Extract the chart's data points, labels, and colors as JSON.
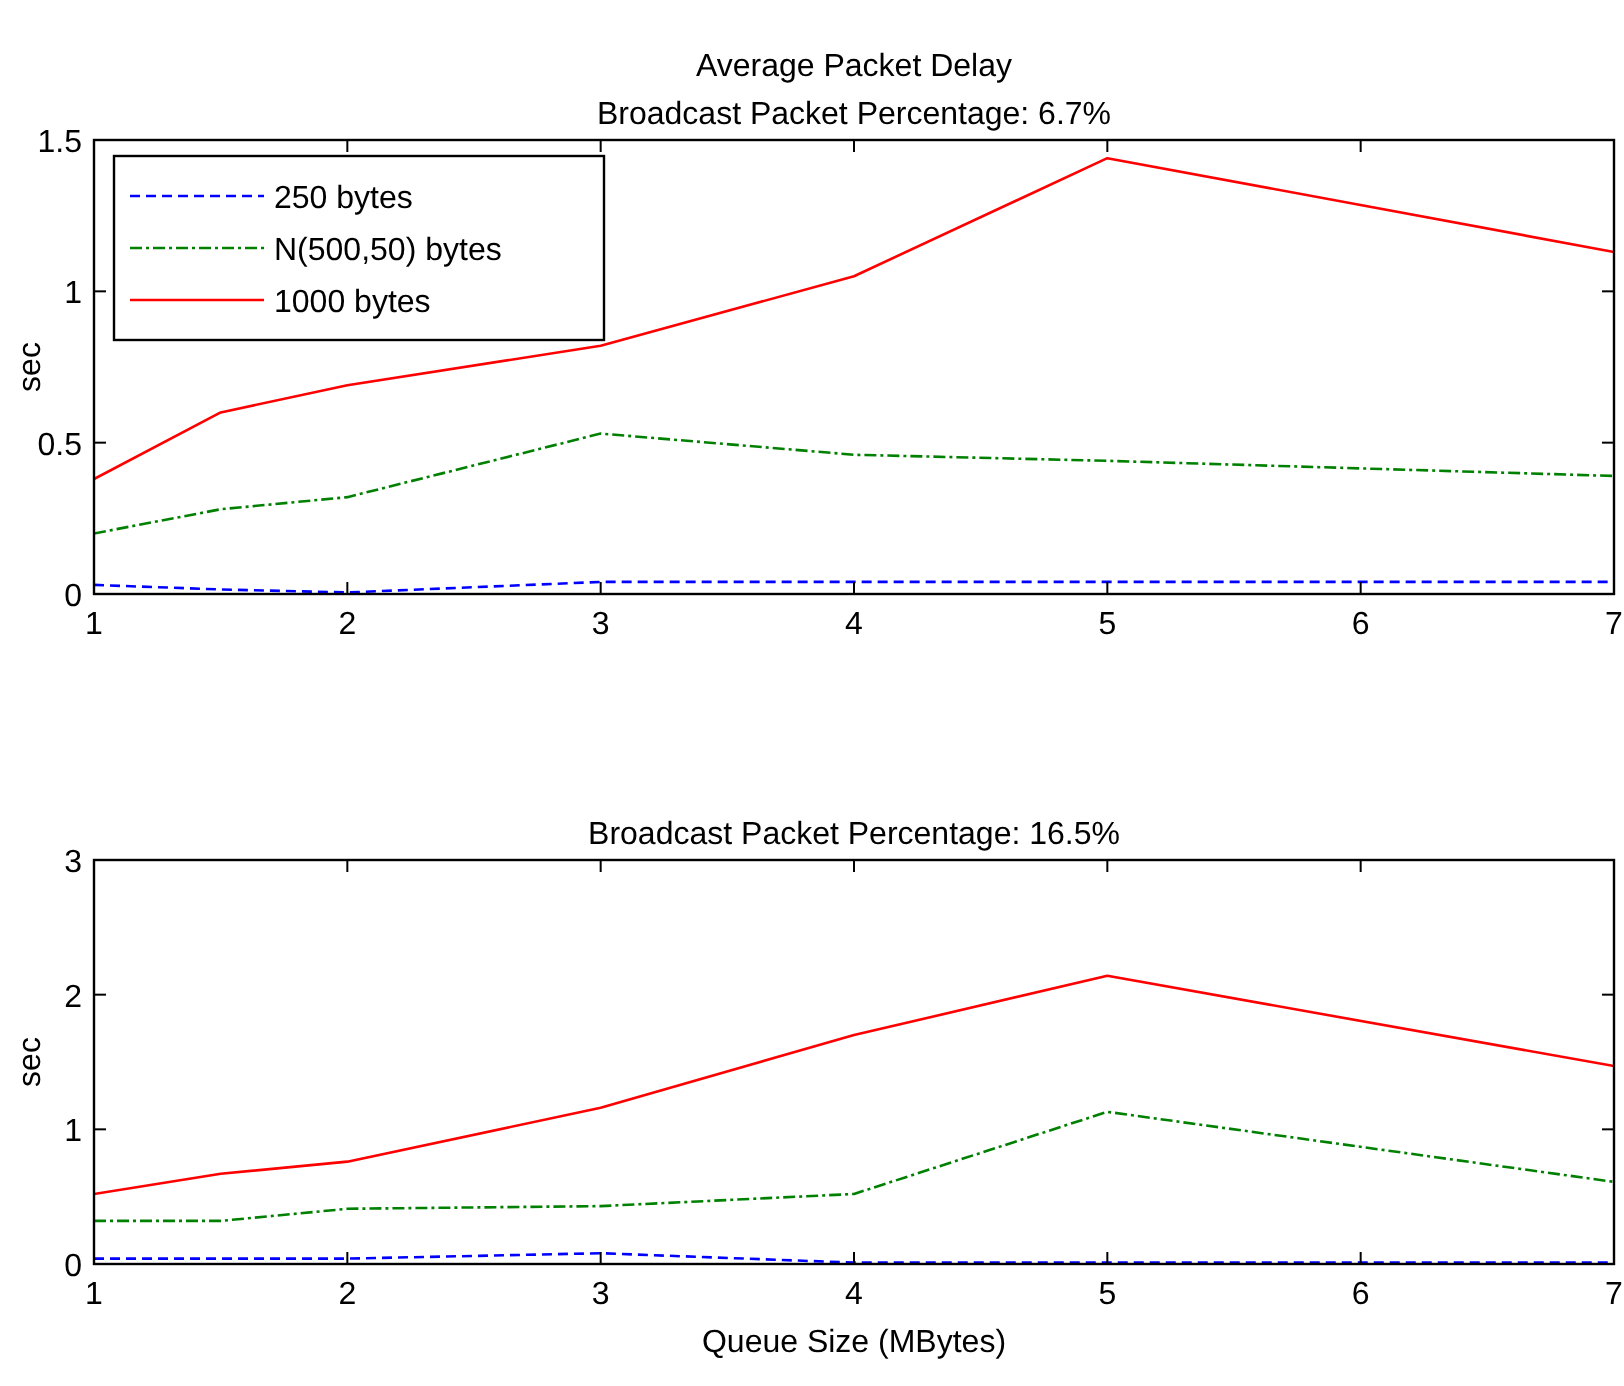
{
  "chart_data": [
    {
      "type": "line",
      "title": "Average Packet Delay",
      "subtitle": "Broadcast Packet Percentage: 6.7%",
      "ylabel": "sec",
      "x": [
        1,
        1.5,
        2,
        3,
        4,
        5,
        7
      ],
      "xlim": [
        1,
        7
      ],
      "xticks": [
        1,
        2,
        3,
        4,
        5,
        6,
        7
      ],
      "ylim": [
        0,
        1.5
      ],
      "yticks": [
        0,
        0.5,
        1,
        1.5
      ],
      "legend": "top left",
      "marker": "none",
      "series": [
        {
          "name": "250 bytes",
          "color": "#0000ff",
          "line_style": "dashed",
          "values": [
            0.03,
            0.015,
            0.005,
            0.04,
            0.04,
            0.04,
            0.04
          ]
        },
        {
          "name": "N(500,50) bytes",
          "color": "#008000",
          "line_style": "dotted",
          "values": [
            0.2,
            0.28,
            0.32,
            0.53,
            0.46,
            0.44,
            0.39
          ]
        },
        {
          "name": "1000 bytes",
          "color": "#ff0000",
          "line_style": "solid",
          "values": [
            0.38,
            0.6,
            0.69,
            0.82,
            1.05,
            1.44,
            1.13
          ]
        }
      ]
    },
    {
      "type": "line",
      "title": "Broadcast Packet Percentage: 16.5%",
      "xlabel": "Queue Size (MBytes)",
      "ylabel": "sec",
      "x": [
        1,
        1.5,
        2,
        3,
        4,
        5,
        7
      ],
      "xlim": [
        1,
        7
      ],
      "xticks": [
        1,
        2,
        3,
        4,
        5,
        6,
        7
      ],
      "ylim": [
        0,
        3
      ],
      "yticks": [
        0,
        1,
        2,
        3
      ],
      "legend": false,
      "marker": "none",
      "series": [
        {
          "color": "#0000ff",
          "line_style": "dashed",
          "values": [
            0.04,
            0.04,
            0.04,
            0.08,
            0.01,
            0.01,
            0.01
          ]
        },
        {
          "color": "#008000",
          "line_style": "dotted",
          "values": [
            0.32,
            0.32,
            0.41,
            0.43,
            0.52,
            1.13,
            0.61
          ]
        },
        {
          "color": "#ff0000",
          "line_style": "solid",
          "values": [
            0.52,
            0.67,
            0.76,
            1.16,
            1.7,
            2.14,
            1.47
          ]
        }
      ]
    }
  ]
}
